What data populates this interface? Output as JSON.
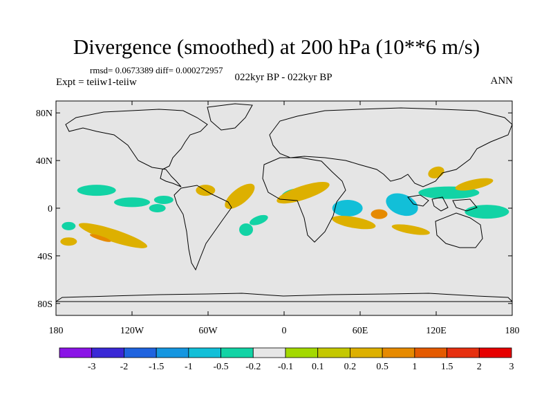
{
  "title": "Divergence (smoothed) at 200 hPa (10**6 m/s)",
  "stats": "rmsd= 0.0673389 diff= 0.000272957",
  "expt": "Expt = teiiw1-teiiw",
  "subtitle": "022kyr BP - 022kyr BP",
  "season": "ANN",
  "map": {
    "projection": "cylindrical-equidistant",
    "lon_range": [
      -180,
      180
    ],
    "lat_range": [
      -90,
      90
    ],
    "background_color": "#e5e5e5",
    "y_ticks": [
      "80N",
      "40N",
      "0",
      "40S",
      "80S"
    ],
    "x_ticks": [
      "180",
      "120W",
      "60W",
      "0",
      "60E",
      "120E",
      "180"
    ]
  },
  "colorbar": {
    "colors": [
      "#8a14e6",
      "#3a28d6",
      "#1f63df",
      "#1596e0",
      "#12bfd8",
      "#12d3a5",
      "#e6e6e6",
      "#a3d900",
      "#c4c800",
      "#ddb000",
      "#e68a00",
      "#e45a00",
      "#e63010",
      "#e60000"
    ],
    "labels": [
      "-3",
      "-2",
      "-1.5",
      "-1",
      "-0.5",
      "-0.2",
      "-0.1",
      "0.1",
      "0.2",
      "0.5",
      "1",
      "1.5",
      "2",
      "3"
    ]
  },
  "anomalies": [
    {
      "lon": -148,
      "lat": 15,
      "level": "-0.2"
    },
    {
      "lon": -120,
      "lat": 5,
      "level": "-0.2"
    },
    {
      "lon": -95,
      "lat": 7,
      "level": "-0.2"
    },
    {
      "lon": -100,
      "lat": 0,
      "level": "-0.2"
    },
    {
      "lon": -135,
      "lat": -23,
      "level": "0.2"
    },
    {
      "lon": -145,
      "lat": -25,
      "level": "0.5"
    },
    {
      "lon": -170,
      "lat": -15,
      "level": "-0.2"
    },
    {
      "lon": -170,
      "lat": -28,
      "level": "0.2"
    },
    {
      "lon": -35,
      "lat": 10,
      "level": "0.2"
    },
    {
      "lon": -20,
      "lat": -10,
      "level": "-0.2"
    },
    {
      "lon": -30,
      "lat": -18,
      "level": "-0.2"
    },
    {
      "lon": 5,
      "lat": 12,
      "level": "-0.2"
    },
    {
      "lon": 15,
      "lat": 13,
      "level": "0.2"
    },
    {
      "lon": 50,
      "lat": 0,
      "level": "-0.5"
    },
    {
      "lon": 55,
      "lat": -12,
      "level": "0.2"
    },
    {
      "lon": 75,
      "lat": -5,
      "level": "0.5"
    },
    {
      "lon": 93,
      "lat": 3,
      "level": "-0.5"
    },
    {
      "lon": 100,
      "lat": -18,
      "level": "0.2"
    },
    {
      "lon": 130,
      "lat": 13,
      "level": "-0.2"
    },
    {
      "lon": 150,
      "lat": 20,
      "level": "0.2"
    },
    {
      "lon": 160,
      "lat": -3,
      "level": "-0.2"
    },
    {
      "lon": 120,
      "lat": 30,
      "level": "0.2"
    },
    {
      "lon": -62,
      "lat": 15,
      "level": "0.2"
    }
  ]
}
